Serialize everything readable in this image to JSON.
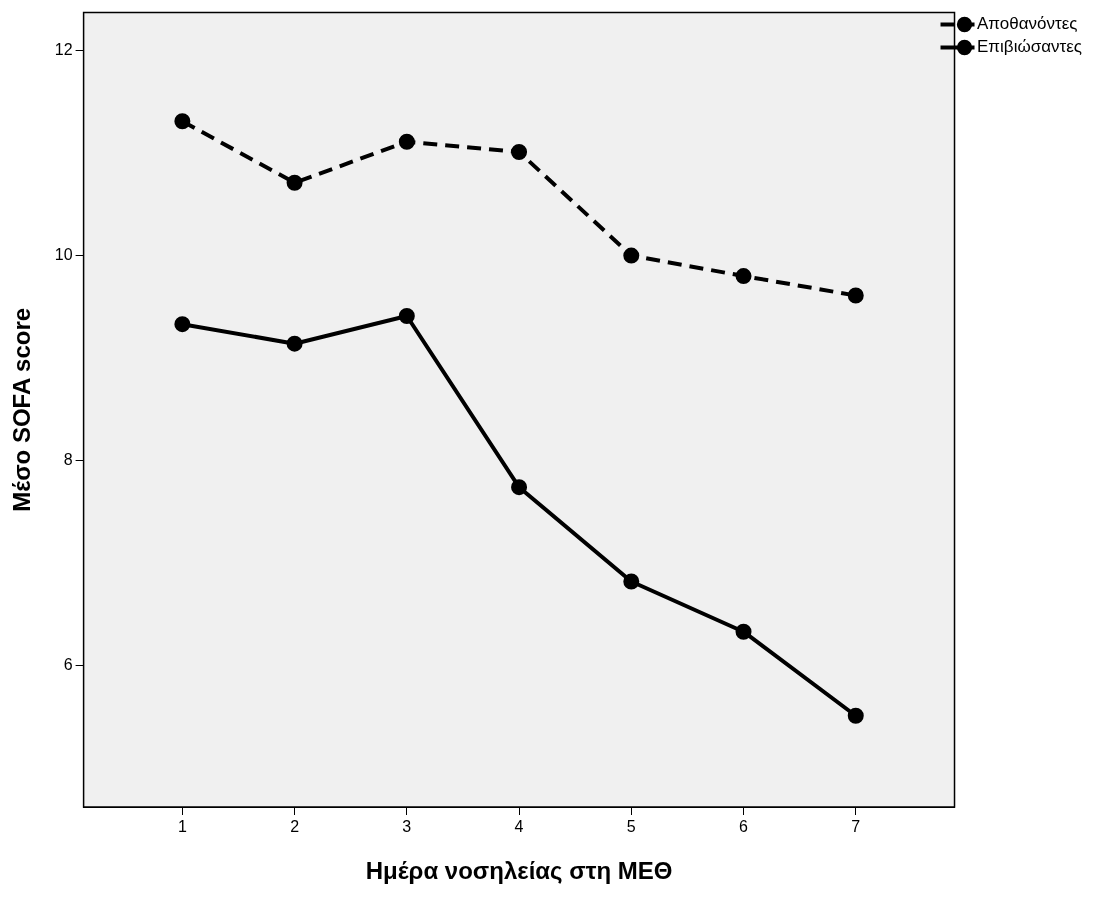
{
  "chart_data": {
    "type": "line",
    "xlabel": "Ημέρα νοσηλείας στη ΜΕΘ",
    "ylabel": "Μέσο SOFA score",
    "x": [
      1,
      2,
      3,
      4,
      5,
      6,
      7
    ],
    "xlim": [
      0.12,
      7.88
    ],
    "xticks": [
      1,
      2,
      3,
      4,
      5,
      6,
      7
    ],
    "ylim": [
      4.62,
      12.37
    ],
    "yticks": [
      6,
      8,
      10,
      12
    ],
    "grid": false,
    "legend": "top right",
    "marker": "circle",
    "series": [
      {
        "name": "Αποθανόντες",
        "color": "#000000",
        "line_style": "dashed",
        "values": [
          11.31,
          10.71,
          11.11,
          11.01,
          10.0,
          9.8,
          9.61
        ]
      },
      {
        "name": "Επιβιώσαντες",
        "color": "#000000",
        "line_style": "solid",
        "values": [
          9.33,
          9.14,
          9.41,
          7.74,
          6.82,
          6.33,
          5.51
        ]
      }
    ]
  }
}
